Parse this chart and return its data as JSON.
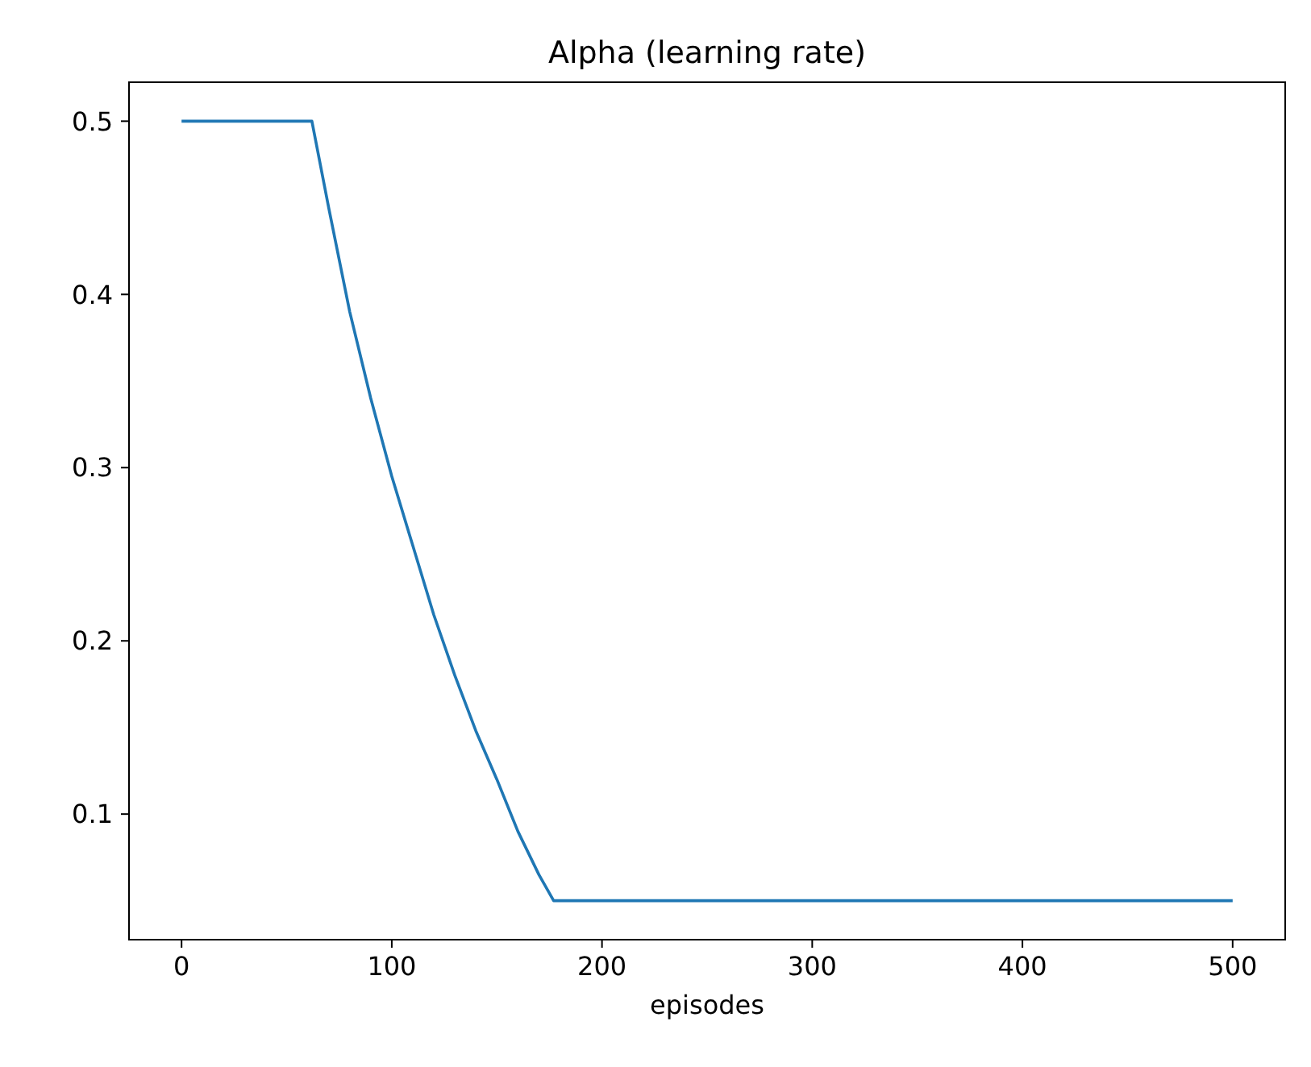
{
  "chart_data": {
    "type": "line",
    "title": "Alpha (learning rate)",
    "xlabel": "episodes",
    "x": [
      0,
      62,
      70,
      80,
      90,
      100,
      110,
      120,
      130,
      140,
      150,
      160,
      170,
      177,
      500
    ],
    "series": [
      {
        "color": "#1f77b4",
        "values": [
          0.5,
          0.5,
          0.45,
          0.39,
          0.34,
          0.295,
          0.255,
          0.215,
          0.18,
          0.148,
          0.12,
          0.09,
          0.065,
          0.05,
          0.05
        ]
      }
    ],
    "xlim": [
      -25,
      525
    ],
    "xticks": [
      0,
      100,
      200,
      300,
      400,
      500
    ],
    "ylim": [
      0.0275,
      0.5225
    ],
    "yticks": [
      0.1,
      0.2,
      0.3,
      0.4,
      0.5
    ],
    "grid": false,
    "marker": "none",
    "line_style": "solid"
  }
}
